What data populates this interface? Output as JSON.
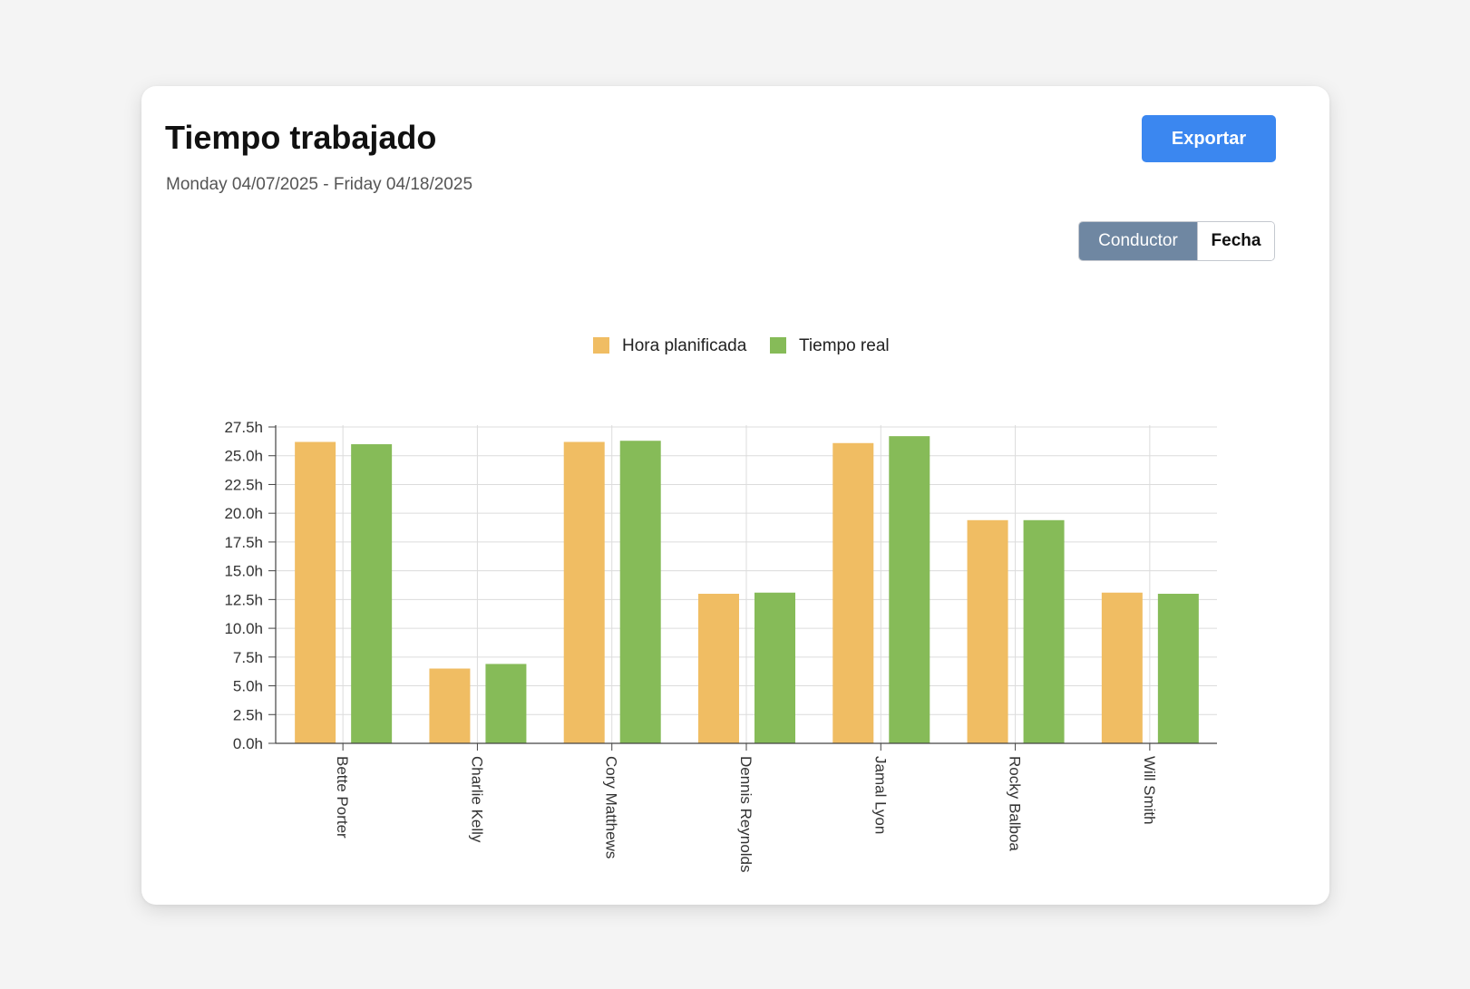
{
  "header": {
    "title": "Tiempo trabajado",
    "date_range": "Monday 04/07/2025 - Friday 04/18/2025",
    "export_label": "Exportar"
  },
  "view_toggle": {
    "options": [
      "Conductor",
      "Fecha"
    ],
    "selected": "Conductor"
  },
  "colors": {
    "accent": "#3b87f0",
    "toggle_active": "#6f87a2",
    "planned": "#f0bd63",
    "actual": "#86bb58"
  },
  "chart_data": {
    "type": "bar",
    "categories": [
      "Bette Porter",
      "Charlie Kelly",
      "Cory Matthews",
      "Dennis Reynolds",
      "Jamal Lyon",
      "Rocky Balboa",
      "Will Smith"
    ],
    "series": [
      {
        "name": "Hora planificada",
        "values": [
          26.2,
          6.5,
          26.2,
          13.0,
          26.1,
          19.4,
          13.1
        ]
      },
      {
        "name": "Tiempo real",
        "values": [
          26.0,
          6.9,
          26.3,
          13.1,
          26.7,
          19.4,
          13.0
        ]
      }
    ],
    "yticks": [
      "0.0h",
      "2.5h",
      "5.0h",
      "7.5h",
      "10.0h",
      "12.5h",
      "15.0h",
      "17.5h",
      "20.0h",
      "22.5h",
      "25.0h",
      "27.5h"
    ],
    "ylim": [
      0,
      27.5
    ],
    "legend": "top-center",
    "grid": true
  }
}
